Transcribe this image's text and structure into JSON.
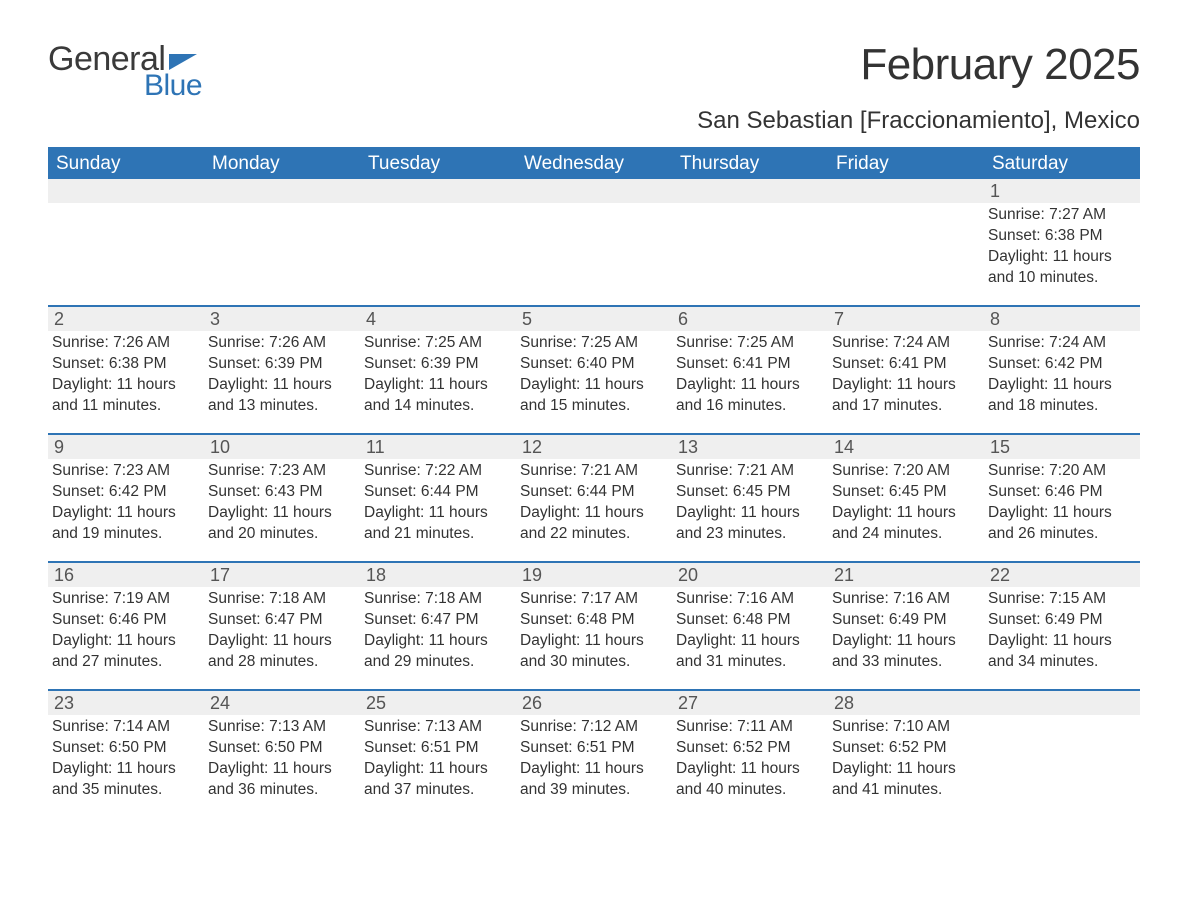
{
  "logo": {
    "text1": "General",
    "text2": "Blue",
    "flag_color": "#2e74b5"
  },
  "title": "February 2025",
  "subtitle": "San Sebastian [Fraccionamiento], Mexico",
  "colors": {
    "header_bg": "#2e74b5",
    "header_text": "#ffffff",
    "daynum_bg": "#efefef",
    "border": "#2e74b5",
    "body_text": "#333333"
  },
  "dow": [
    "Sunday",
    "Monday",
    "Tuesday",
    "Wednesday",
    "Thursday",
    "Friday",
    "Saturday"
  ],
  "weeks": [
    [
      {
        "n": "",
        "sr": "",
        "ss": "",
        "dl": ""
      },
      {
        "n": "",
        "sr": "",
        "ss": "",
        "dl": ""
      },
      {
        "n": "",
        "sr": "",
        "ss": "",
        "dl": ""
      },
      {
        "n": "",
        "sr": "",
        "ss": "",
        "dl": ""
      },
      {
        "n": "",
        "sr": "",
        "ss": "",
        "dl": ""
      },
      {
        "n": "",
        "sr": "",
        "ss": "",
        "dl": ""
      },
      {
        "n": "1",
        "sr": "Sunrise: 7:27 AM",
        "ss": "Sunset: 6:38 PM",
        "dl": "Daylight: 11 hours and 10 minutes."
      }
    ],
    [
      {
        "n": "2",
        "sr": "Sunrise: 7:26 AM",
        "ss": "Sunset: 6:38 PM",
        "dl": "Daylight: 11 hours and 11 minutes."
      },
      {
        "n": "3",
        "sr": "Sunrise: 7:26 AM",
        "ss": "Sunset: 6:39 PM",
        "dl": "Daylight: 11 hours and 13 minutes."
      },
      {
        "n": "4",
        "sr": "Sunrise: 7:25 AM",
        "ss": "Sunset: 6:39 PM",
        "dl": "Daylight: 11 hours and 14 minutes."
      },
      {
        "n": "5",
        "sr": "Sunrise: 7:25 AM",
        "ss": "Sunset: 6:40 PM",
        "dl": "Daylight: 11 hours and 15 minutes."
      },
      {
        "n": "6",
        "sr": "Sunrise: 7:25 AM",
        "ss": "Sunset: 6:41 PM",
        "dl": "Daylight: 11 hours and 16 minutes."
      },
      {
        "n": "7",
        "sr": "Sunrise: 7:24 AM",
        "ss": "Sunset: 6:41 PM",
        "dl": "Daylight: 11 hours and 17 minutes."
      },
      {
        "n": "8",
        "sr": "Sunrise: 7:24 AM",
        "ss": "Sunset: 6:42 PM",
        "dl": "Daylight: 11 hours and 18 minutes."
      }
    ],
    [
      {
        "n": "9",
        "sr": "Sunrise: 7:23 AM",
        "ss": "Sunset: 6:42 PM",
        "dl": "Daylight: 11 hours and 19 minutes."
      },
      {
        "n": "10",
        "sr": "Sunrise: 7:23 AM",
        "ss": "Sunset: 6:43 PM",
        "dl": "Daylight: 11 hours and 20 minutes."
      },
      {
        "n": "11",
        "sr": "Sunrise: 7:22 AM",
        "ss": "Sunset: 6:44 PM",
        "dl": "Daylight: 11 hours and 21 minutes."
      },
      {
        "n": "12",
        "sr": "Sunrise: 7:21 AM",
        "ss": "Sunset: 6:44 PM",
        "dl": "Daylight: 11 hours and 22 minutes."
      },
      {
        "n": "13",
        "sr": "Sunrise: 7:21 AM",
        "ss": "Sunset: 6:45 PM",
        "dl": "Daylight: 11 hours and 23 minutes."
      },
      {
        "n": "14",
        "sr": "Sunrise: 7:20 AM",
        "ss": "Sunset: 6:45 PM",
        "dl": "Daylight: 11 hours and 24 minutes."
      },
      {
        "n": "15",
        "sr": "Sunrise: 7:20 AM",
        "ss": "Sunset: 6:46 PM",
        "dl": "Daylight: 11 hours and 26 minutes."
      }
    ],
    [
      {
        "n": "16",
        "sr": "Sunrise: 7:19 AM",
        "ss": "Sunset: 6:46 PM",
        "dl": "Daylight: 11 hours and 27 minutes."
      },
      {
        "n": "17",
        "sr": "Sunrise: 7:18 AM",
        "ss": "Sunset: 6:47 PM",
        "dl": "Daylight: 11 hours and 28 minutes."
      },
      {
        "n": "18",
        "sr": "Sunrise: 7:18 AM",
        "ss": "Sunset: 6:47 PM",
        "dl": "Daylight: 11 hours and 29 minutes."
      },
      {
        "n": "19",
        "sr": "Sunrise: 7:17 AM",
        "ss": "Sunset: 6:48 PM",
        "dl": "Daylight: 11 hours and 30 minutes."
      },
      {
        "n": "20",
        "sr": "Sunrise: 7:16 AM",
        "ss": "Sunset: 6:48 PM",
        "dl": "Daylight: 11 hours and 31 minutes."
      },
      {
        "n": "21",
        "sr": "Sunrise: 7:16 AM",
        "ss": "Sunset: 6:49 PM",
        "dl": "Daylight: 11 hours and 33 minutes."
      },
      {
        "n": "22",
        "sr": "Sunrise: 7:15 AM",
        "ss": "Sunset: 6:49 PM",
        "dl": "Daylight: 11 hours and 34 minutes."
      }
    ],
    [
      {
        "n": "23",
        "sr": "Sunrise: 7:14 AM",
        "ss": "Sunset: 6:50 PM",
        "dl": "Daylight: 11 hours and 35 minutes."
      },
      {
        "n": "24",
        "sr": "Sunrise: 7:13 AM",
        "ss": "Sunset: 6:50 PM",
        "dl": "Daylight: 11 hours and 36 minutes."
      },
      {
        "n": "25",
        "sr": "Sunrise: 7:13 AM",
        "ss": "Sunset: 6:51 PM",
        "dl": "Daylight: 11 hours and 37 minutes."
      },
      {
        "n": "26",
        "sr": "Sunrise: 7:12 AM",
        "ss": "Sunset: 6:51 PM",
        "dl": "Daylight: 11 hours and 39 minutes."
      },
      {
        "n": "27",
        "sr": "Sunrise: 7:11 AM",
        "ss": "Sunset: 6:52 PM",
        "dl": "Daylight: 11 hours and 40 minutes."
      },
      {
        "n": "28",
        "sr": "Sunrise: 7:10 AM",
        "ss": "Sunset: 6:52 PM",
        "dl": "Daylight: 11 hours and 41 minutes."
      },
      {
        "n": "",
        "sr": "",
        "ss": "",
        "dl": ""
      }
    ]
  ]
}
